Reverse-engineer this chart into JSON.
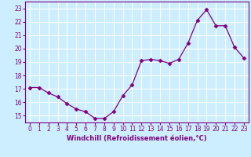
{
  "x": [
    0,
    1,
    2,
    3,
    4,
    5,
    6,
    7,
    8,
    9,
    10,
    11,
    12,
    13,
    14,
    15,
    16,
    17,
    18,
    19,
    20,
    21,
    22,
    23
  ],
  "y": [
    17.1,
    17.1,
    16.7,
    16.4,
    15.9,
    15.5,
    15.3,
    14.8,
    14.8,
    15.3,
    16.5,
    17.3,
    19.1,
    19.2,
    19.1,
    18.9,
    19.2,
    20.4,
    22.1,
    22.9,
    21.7,
    21.7,
    20.1,
    19.3
  ],
  "line_color": "#800080",
  "marker": "D",
  "marker_size": 2.5,
  "bg_color": "#cceeff",
  "grid_color": "#ffffff",
  "xlabel": "Windchill (Refroidissement éolien,°C)",
  "yticks": [
    15,
    16,
    17,
    18,
    19,
    20,
    21,
    22,
    23
  ],
  "xlim": [
    -0.5,
    23.5
  ],
  "ylim": [
    14.5,
    23.5
  ],
  "tick_color": "#800080",
  "label_color": "#800080",
  "spine_color": "#800080",
  "tick_fontsize": 5.5,
  "xlabel_fontsize": 6.0
}
